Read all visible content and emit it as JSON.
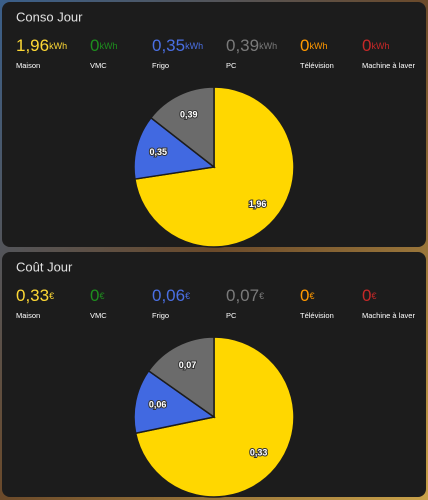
{
  "cards": [
    {
      "title": "Conso Jour",
      "items": [
        {
          "value": "1,96",
          "unit": "kWh",
          "name": "Maison",
          "color": "#fdd835"
        },
        {
          "value": "0",
          "unit": "kWh",
          "name": "VMC",
          "color": "#1e8e1e"
        },
        {
          "value": "0,35",
          "unit": "kWh",
          "name": "Frigo",
          "color": "#4a6fe3"
        },
        {
          "value": "0,39",
          "unit": "kWh",
          "name": "PC",
          "color": "#7a7a7a"
        },
        {
          "value": "0",
          "unit": "kWh",
          "name": "Télévision",
          "color": "#ff9800"
        },
        {
          "value": "0",
          "unit": "kWh",
          "name": "Machine à laver",
          "color": "#c62828"
        }
      ]
    },
    {
      "title": "Coût Jour",
      "items": [
        {
          "value": "0,33",
          "unit": "€",
          "name": "Maison",
          "color": "#fdd835"
        },
        {
          "value": "0",
          "unit": "€",
          "name": "VMC",
          "color": "#1e8e1e"
        },
        {
          "value": "0,06",
          "unit": "€",
          "name": "Frigo",
          "color": "#4a6fe3"
        },
        {
          "value": "0,07",
          "unit": "€",
          "name": "PC",
          "color": "#7a7a7a"
        },
        {
          "value": "0",
          "unit": "€",
          "name": "Télévision",
          "color": "#ff9800"
        },
        {
          "value": "0",
          "unit": "€",
          "name": "Machine à laver",
          "color": "#c62828"
        }
      ]
    }
  ],
  "chart_data": [
    {
      "type": "pie",
      "values": [
        1.96,
        0.35,
        0.39
      ],
      "value_labels": [
        "1,96",
        "0,35",
        "0,39"
      ],
      "colors": [
        "#ffd700",
        "#4169e1",
        "#6b6b6b"
      ]
    },
    {
      "type": "pie",
      "values": [
        0.33,
        0.06,
        0.07
      ],
      "value_labels": [
        "0,33",
        "0,06",
        "0,07"
      ],
      "colors": [
        "#ffd700",
        "#4169e1",
        "#6b6b6b"
      ]
    }
  ]
}
